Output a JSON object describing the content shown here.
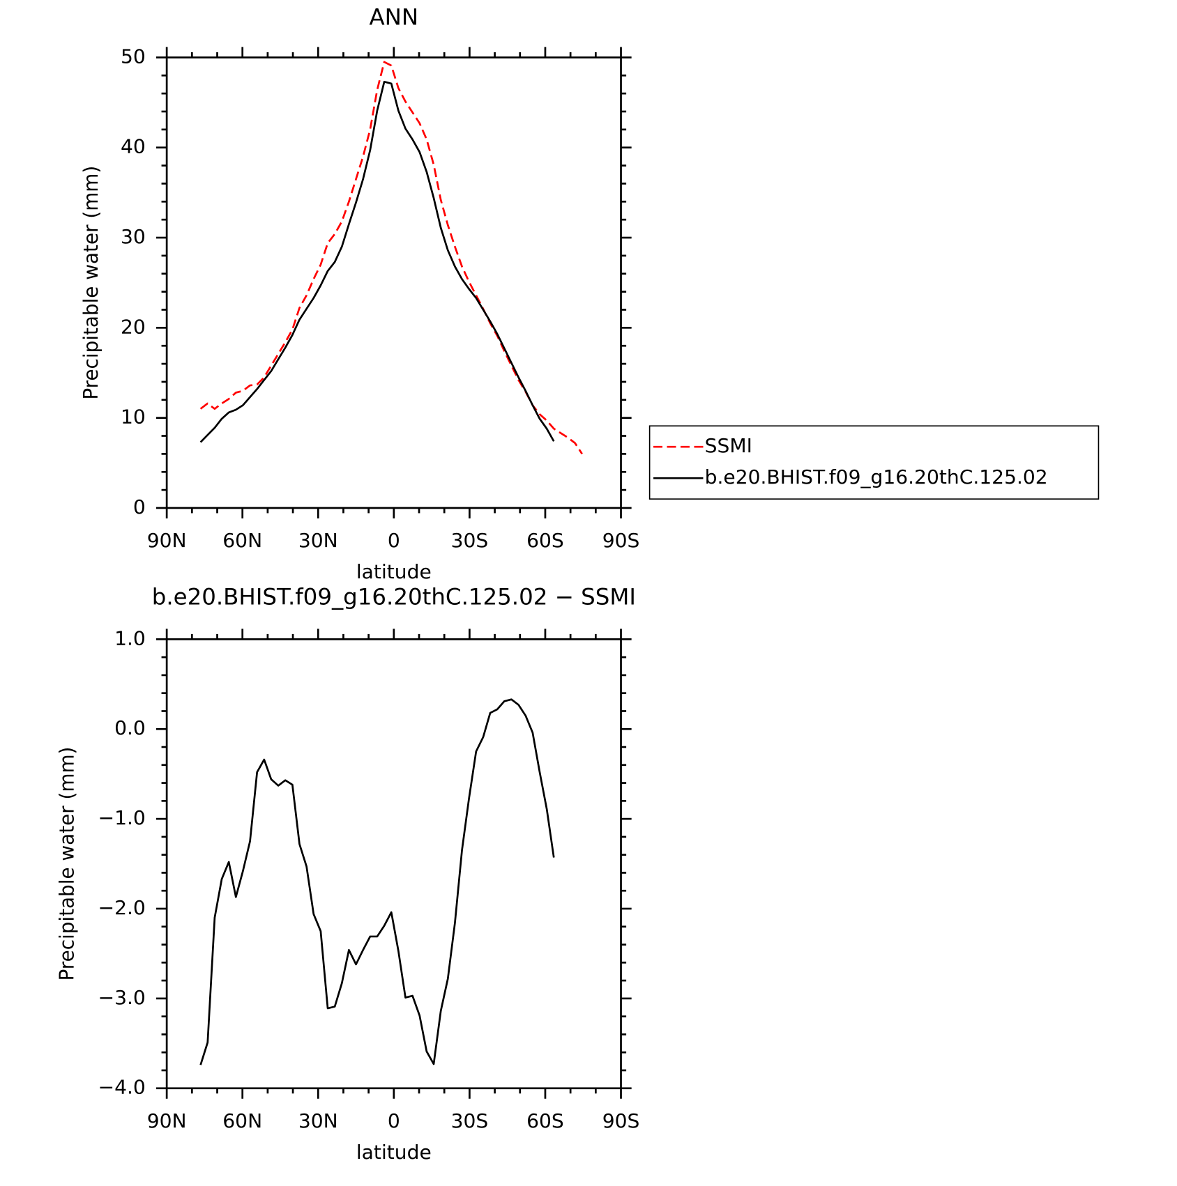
{
  "chart_data": [
    {
      "type": "line",
      "title": "ANN",
      "xlabel": "latitude",
      "ylabel": "Precipitable water (mm)",
      "x": [
        76.6,
        73.8,
        71.0,
        68.2,
        65.4,
        62.6,
        59.8,
        57.0,
        54.2,
        51.4,
        48.6,
        45.8,
        43.0,
        40.2,
        37.4,
        34.6,
        31.8,
        29.0,
        26.2,
        23.4,
        20.6,
        17.8,
        15.0,
        12.2,
        9.4,
        6.6,
        3.8,
        1.0,
        -1.8,
        -4.6,
        -7.4,
        -10.2,
        -13.0,
        -15.8,
        -18.6,
        -21.4,
        -24.2,
        -27.0,
        -29.8,
        -32.6,
        -35.4,
        -38.2,
        -41.0,
        -43.8,
        -46.6,
        -49.4,
        -52.2,
        -55.0,
        -57.8,
        -60.6,
        -63.4,
        -66.2,
        -69.0,
        -71.8,
        -74.6
      ],
      "series": [
        {
          "name": "SSMI",
          "color": "#ff0000",
          "style": "dashed",
          "values": [
            11.0,
            11.6,
            11.0,
            11.6,
            12.1,
            12.8,
            13.0,
            13.6,
            13.7,
            14.5,
            15.8,
            17.1,
            18.4,
            19.8,
            22.2,
            23.6,
            25.4,
            27.0,
            29.4,
            30.4,
            31.8,
            34.0,
            36.5,
            39.0,
            42.0,
            46.4,
            49.5,
            49.1,
            46.6,
            45.1,
            43.9,
            42.7,
            40.9,
            38.1,
            34.2,
            31.4,
            29.0,
            26.8,
            25.1,
            23.6,
            22.1,
            20.5,
            19.1,
            17.4,
            15.8,
            14.2,
            12.9,
            11.4,
            10.4,
            9.7,
            8.8,
            8.3,
            7.8,
            7.2,
            6.0
          ]
        },
        {
          "name": "b.e20.BHIST.f09_g16.20thC.125.02",
          "color": "#000000",
          "style": "solid",
          "values": [
            7.3,
            8.1,
            8.9,
            9.9,
            10.6,
            10.9,
            11.4,
            12.3,
            13.2,
            14.2,
            15.2,
            16.5,
            17.8,
            19.2,
            20.9,
            22.1,
            23.3,
            24.7,
            26.3,
            27.3,
            29.0,
            31.5,
            33.9,
            36.5,
            39.7,
            44.1,
            47.3,
            47.1,
            44.1,
            42.1,
            40.9,
            39.5,
            37.3,
            34.4,
            31.1,
            28.6,
            26.8,
            25.4,
            24.3,
            23.3,
            22.0,
            20.7,
            19.3,
            17.7,
            16.1,
            14.5,
            13.0,
            11.4,
            9.9,
            8.8,
            7.4,
            null,
            null,
            null,
            null
          ]
        }
      ],
      "xlim": [
        90,
        -90
      ],
      "xticks": [
        {
          "value": 90,
          "label": "90N"
        },
        {
          "value": 60,
          "label": "60N"
        },
        {
          "value": 30,
          "label": "30N"
        },
        0,
        {
          "value": -30,
          "label": "30S"
        },
        {
          "value": -60,
          "label": "60S"
        },
        {
          "value": -90,
          "label": "90S"
        }
      ],
      "xminorticks": [
        80,
        70,
        50,
        40,
        20,
        10,
        -10,
        -20,
        -40,
        -50,
        -70,
        -80
      ],
      "ylim": [
        0,
        50
      ],
      "yticks": [
        0,
        10,
        20,
        30,
        40,
        50
      ],
      "yminorticks": [
        2,
        4,
        6,
        8,
        12,
        14,
        16,
        18,
        22,
        24,
        26,
        28,
        32,
        34,
        36,
        38,
        42,
        44,
        46,
        48
      ],
      "legend": true,
      "legend_position": "right"
    },
    {
      "type": "line",
      "title": "b.e20.BHIST.f09_g16.20thC.125.02 − SSMI",
      "xlabel": "latitude",
      "ylabel": "Precipitable water (mm)",
      "x": [
        76.6,
        73.8,
        71.0,
        68.2,
        65.4,
        62.6,
        59.8,
        57.0,
        54.2,
        51.4,
        48.6,
        45.8,
        43.0,
        40.2,
        37.4,
        34.6,
        31.8,
        29.0,
        26.2,
        23.4,
        20.6,
        17.8,
        15.0,
        12.2,
        9.4,
        6.6,
        3.8,
        1.0,
        -1.8,
        -4.6,
        -7.4,
        -10.2,
        -13.0,
        -15.8,
        -18.6,
        -21.4,
        -24.2,
        -27.0,
        -29.8,
        -32.6,
        -35.4,
        -38.2,
        -41.0,
        -43.8,
        -46.6,
        -49.4,
        -52.2,
        -55.0,
        -57.8,
        -60.6,
        -63.4
      ],
      "series": [
        {
          "color": "#000000",
          "style": "solid",
          "values": [
            -3.74,
            -3.49,
            -2.1,
            -1.67,
            -1.48,
            -1.87,
            -1.58,
            -1.25,
            -0.48,
            -0.34,
            -0.56,
            -0.63,
            -0.57,
            -0.62,
            -1.28,
            -1.53,
            -2.06,
            -2.25,
            -3.11,
            -3.09,
            -2.83,
            -2.46,
            -2.62,
            -2.46,
            -2.31,
            -2.31,
            -2.19,
            -2.04,
            -2.47,
            -2.99,
            -2.97,
            -3.19,
            -3.59,
            -3.73,
            -3.14,
            -2.78,
            -2.16,
            -1.35,
            -0.77,
            -0.25,
            -0.09,
            0.18,
            0.22,
            0.31,
            0.33,
            0.27,
            0.15,
            -0.04,
            -0.48,
            -0.89,
            -1.43
          ]
        }
      ],
      "xlim": [
        90,
        -90
      ],
      "xticks": [
        {
          "value": 90,
          "label": "90N"
        },
        {
          "value": 60,
          "label": "60N"
        },
        {
          "value": 30,
          "label": "30N"
        },
        0,
        {
          "value": -30,
          "label": "30S"
        },
        {
          "value": -60,
          "label": "60S"
        },
        {
          "value": -90,
          "label": "90S"
        }
      ],
      "xminorticks": [
        80,
        70,
        50,
        40,
        20,
        10,
        -10,
        -20,
        -40,
        -50,
        -70,
        -80
      ],
      "ylim": [
        -4.0,
        1.0
      ],
      "yticks": [
        {
          "value": 1.0,
          "label": "1.0"
        },
        {
          "value": 0.0,
          "label": "0.0"
        },
        {
          "value": -1.0,
          "label": "−1.0"
        },
        {
          "value": -2.0,
          "label": "−2.0"
        },
        {
          "value": -3.0,
          "label": "−3.0"
        },
        {
          "value": -4.0,
          "label": "−4.0"
        }
      ],
      "yminorticks": [
        0.8,
        0.6,
        0.4,
        0.2,
        -0.2,
        -0.4,
        -0.6,
        -0.8,
        -1.2,
        -1.4,
        -1.6,
        -1.8,
        -2.2,
        -2.4,
        -2.6,
        -2.8,
        -3.2,
        -3.4,
        -3.6,
        -3.8
      ],
      "legend": false
    }
  ]
}
